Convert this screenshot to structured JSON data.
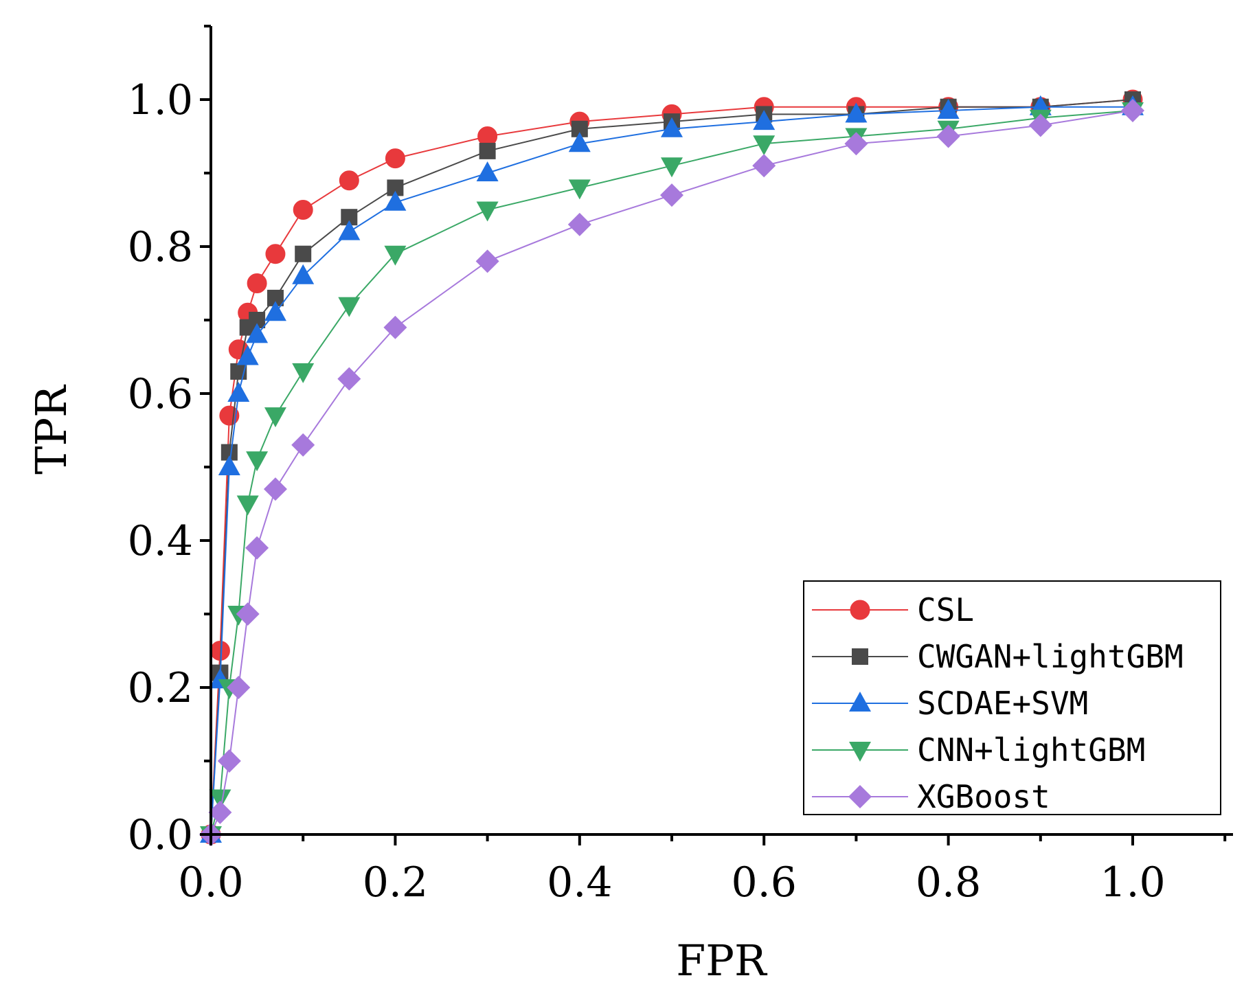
{
  "chart_data": {
    "type": "line",
    "title": "",
    "xlabel": "FPR",
    "ylabel": "TPR",
    "xlim": [
      0.0,
      1.1
    ],
    "ylim": [
      0.0,
      1.1
    ],
    "xticks": [
      "0.0",
      "0.2",
      "0.4",
      "0.6",
      "0.8",
      "1.0"
    ],
    "yticks": [
      "0.0",
      "0.2",
      "0.4",
      "0.6",
      "0.8",
      "1.0"
    ],
    "legend_position": "bottom-right",
    "series": [
      {
        "name": "CSL",
        "color": "#e8393c",
        "marker": "circle",
        "x": [
          0.0,
          0.01,
          0.02,
          0.03,
          0.04,
          0.05,
          0.07,
          0.1,
          0.15,
          0.2,
          0.3,
          0.4,
          0.5,
          0.6,
          0.7,
          0.8,
          0.9,
          1.0
        ],
        "y": [
          0.0,
          0.25,
          0.57,
          0.66,
          0.71,
          0.75,
          0.79,
          0.85,
          0.89,
          0.92,
          0.95,
          0.97,
          0.98,
          0.99,
          0.99,
          0.99,
          0.99,
          1.0
        ]
      },
      {
        "name": "CWGAN+lightGBM",
        "color": "#4a4a4a",
        "marker": "square",
        "x": [
          0.0,
          0.01,
          0.02,
          0.03,
          0.04,
          0.05,
          0.07,
          0.1,
          0.15,
          0.2,
          0.3,
          0.4,
          0.5,
          0.6,
          0.7,
          0.8,
          0.9,
          1.0
        ],
        "y": [
          0.0,
          0.22,
          0.52,
          0.63,
          0.69,
          0.7,
          0.73,
          0.79,
          0.84,
          0.88,
          0.93,
          0.96,
          0.97,
          0.98,
          0.98,
          0.99,
          0.99,
          1.0
        ]
      },
      {
        "name": "SCDAE+SVM",
        "color": "#1f6fe0",
        "marker": "triangle-up",
        "x": [
          0.0,
          0.01,
          0.02,
          0.03,
          0.04,
          0.05,
          0.07,
          0.1,
          0.15,
          0.2,
          0.3,
          0.4,
          0.5,
          0.6,
          0.7,
          0.8,
          0.9,
          1.0
        ],
        "y": [
          0.0,
          0.21,
          0.5,
          0.6,
          0.65,
          0.68,
          0.71,
          0.76,
          0.82,
          0.86,
          0.9,
          0.94,
          0.96,
          0.97,
          0.98,
          0.985,
          0.99,
          0.99
        ]
      },
      {
        "name": "CNN+lightGBM",
        "color": "#3aa866",
        "marker": "triangle-down",
        "x": [
          0.0,
          0.01,
          0.02,
          0.03,
          0.04,
          0.05,
          0.07,
          0.1,
          0.15,
          0.2,
          0.3,
          0.4,
          0.5,
          0.6,
          0.7,
          0.8,
          0.9,
          1.0
        ],
        "y": [
          0.0,
          0.05,
          0.2,
          0.3,
          0.45,
          0.51,
          0.57,
          0.63,
          0.72,
          0.79,
          0.85,
          0.88,
          0.91,
          0.94,
          0.95,
          0.96,
          0.975,
          0.985
        ]
      },
      {
        "name": "XGBoost",
        "color": "#a779dc",
        "marker": "diamond",
        "x": [
          0.0,
          0.01,
          0.02,
          0.03,
          0.04,
          0.05,
          0.07,
          0.1,
          0.15,
          0.2,
          0.3,
          0.4,
          0.5,
          0.6,
          0.7,
          0.8,
          0.9,
          1.0
        ],
        "y": [
          0.0,
          0.03,
          0.1,
          0.2,
          0.3,
          0.39,
          0.47,
          0.53,
          0.62,
          0.69,
          0.78,
          0.83,
          0.87,
          0.91,
          0.94,
          0.95,
          0.965,
          0.985
        ]
      }
    ]
  }
}
